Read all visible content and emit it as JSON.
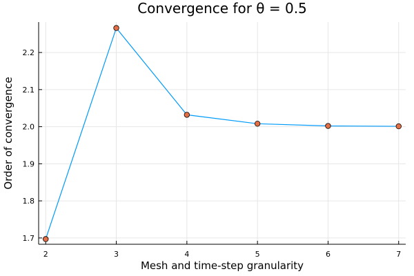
{
  "chart_data": {
    "type": "line",
    "title": "Convergence for θ = 0.5",
    "xlabel": "Mesh and time-step granularity",
    "ylabel": "Order of convergence",
    "x": [
      2,
      3,
      4,
      5,
      6,
      7
    ],
    "y": [
      1.697,
      2.266,
      2.032,
      2.008,
      2.002,
      2.001
    ],
    "xlim": [
      1.9,
      7.1
    ],
    "ylim": [
      1.683,
      2.282
    ],
    "xticks": [
      2,
      3,
      4,
      5,
      6,
      7
    ],
    "yticks": [
      1.7,
      1.8,
      1.9,
      2.0,
      2.1,
      2.2
    ],
    "ytick_labels": [
      "1.7",
      "1.8",
      "1.9",
      "2.0",
      "2.1",
      "2.2"
    ],
    "grid": true,
    "legend": "none",
    "line_color": "#009AFA",
    "marker_color": "#E26F46"
  }
}
